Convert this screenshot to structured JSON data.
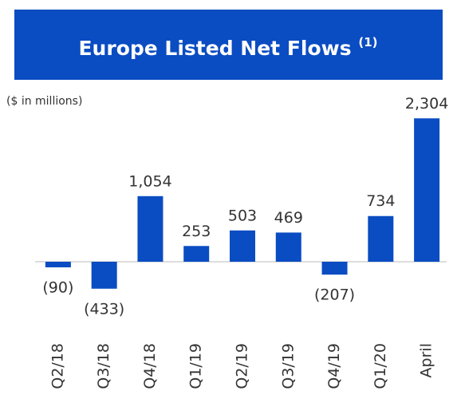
{
  "chart_data": {
    "type": "bar",
    "title": "Europe Listed Net Flows",
    "title_note": "(1)",
    "subtitle": "($ in millions)",
    "categories": [
      "Q2/18",
      "Q3/18",
      "Q4/18",
      "Q1/19",
      "Q2/19",
      "Q3/19",
      "Q4/19",
      "Q1/20",
      "April"
    ],
    "values": [
      -90,
      -433,
      1054,
      253,
      503,
      469,
      -207,
      734,
      2304
    ],
    "value_labels": [
      "(90)",
      "(433)",
      "1,054",
      "253",
      "503",
      "469",
      "(207)",
      "734",
      "2,304"
    ],
    "color": "#0a4cc2",
    "ylim": [
      -500,
      2500
    ]
  }
}
